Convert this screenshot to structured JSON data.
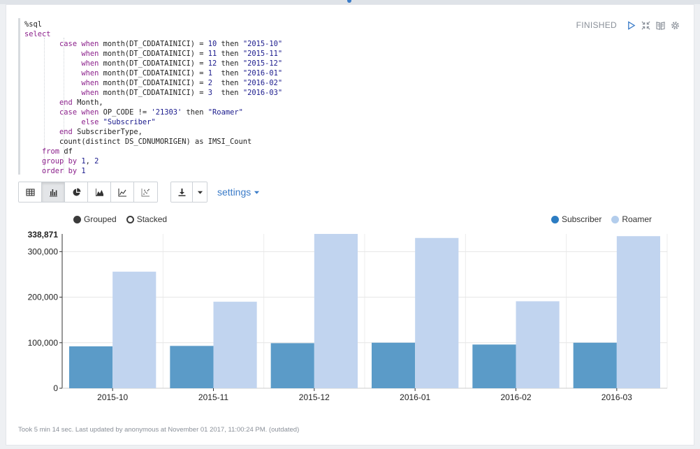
{
  "paragraph": {
    "status": "FINISHED"
  },
  "editor": {
    "lines": [
      "%sql",
      "select",
      "        case when month(DT_CDDATAINICI) = 10 then \"2015-10\"",
      "             when month(DT_CDDATAINICI) = 11 then \"2015-11\"",
      "             when month(DT_CDDATAINICI) = 12 then \"2015-12\"",
      "             when month(DT_CDDATAINICI) = 1  then \"2016-01\"",
      "             when month(DT_CDDATAINICI) = 2  then \"2016-02\"",
      "             when month(DT_CDDATAINICI) = 3  then \"2016-03\"",
      "        end Month,",
      "        case when OP_CODE != '21303' then \"Roamer\"",
      "             else \"Subscriber\"",
      "        end SubscriberType,",
      "        count(distinct DS_CDNUMORIGEN) as IMSI_Count",
      "    from df",
      "    group by 1, 2",
      "    order by 1"
    ]
  },
  "toolbar": {
    "views": [
      "table-icon",
      "bar-chart-icon",
      "pie-chart-icon",
      "area-chart-icon",
      "line-chart-icon",
      "scatter-chart-icon"
    ],
    "settings_label": "settings"
  },
  "legend": {
    "grouped_label": "Grouped",
    "stacked_label": "Stacked",
    "mode": "grouped"
  },
  "colors": {
    "subscriber": "#5b9bc8",
    "roamer": "#c1d4ef",
    "accent": "#3a7bc8"
  },
  "chart_data": {
    "type": "bar",
    "categories": [
      "2015-10",
      "2015-11",
      "2015-12",
      "2016-01",
      "2016-02",
      "2016-03"
    ],
    "series": [
      {
        "name": "Subscriber",
        "values": [
          92000,
          93000,
          99000,
          100000,
          96000,
          100000
        ]
      },
      {
        "name": "Roamer",
        "values": [
          256000,
          190000,
          338871,
          330000,
          191000,
          334000
        ]
      }
    ],
    "ylim": [
      0,
      338871
    ],
    "yticks": [
      0,
      100000,
      200000,
      300000
    ],
    "ytick_labels": [
      "0",
      "100,000",
      "200,000",
      "300,000"
    ],
    "ymax_label": "338,871",
    "grid": true,
    "legend": "top-right"
  },
  "footer": {
    "text": "Took 5 min 14 sec. Last updated by anonymous at November 01 2017, 11:00:24 PM. (outdated)"
  }
}
